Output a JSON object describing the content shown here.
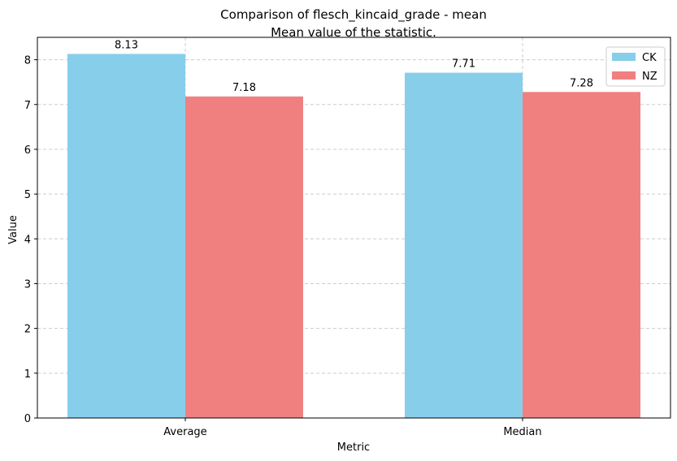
{
  "chart_data": {
    "type": "bar",
    "title": "Comparison of flesch_kincaid_grade - mean",
    "subtitle": "Mean value of the statistic.",
    "xlabel": "Metric",
    "ylabel": "Value",
    "categories": [
      "Average",
      "Median"
    ],
    "series": [
      {
        "name": "CK",
        "values": [
          8.13,
          7.71
        ],
        "color": "#87ceeb"
      },
      {
        "name": "NZ",
        "values": [
          7.18,
          7.28
        ],
        "color": "#f08080"
      }
    ],
    "ylim": [
      0,
      8.5
    ],
    "yticks": [
      0,
      1,
      2,
      3,
      4,
      5,
      6,
      7,
      8
    ],
    "data_labels": [
      [
        "8.13",
        "7.71"
      ],
      [
        "7.18",
        "7.28"
      ]
    ],
    "grid": true,
    "legend_position": "top-right"
  }
}
